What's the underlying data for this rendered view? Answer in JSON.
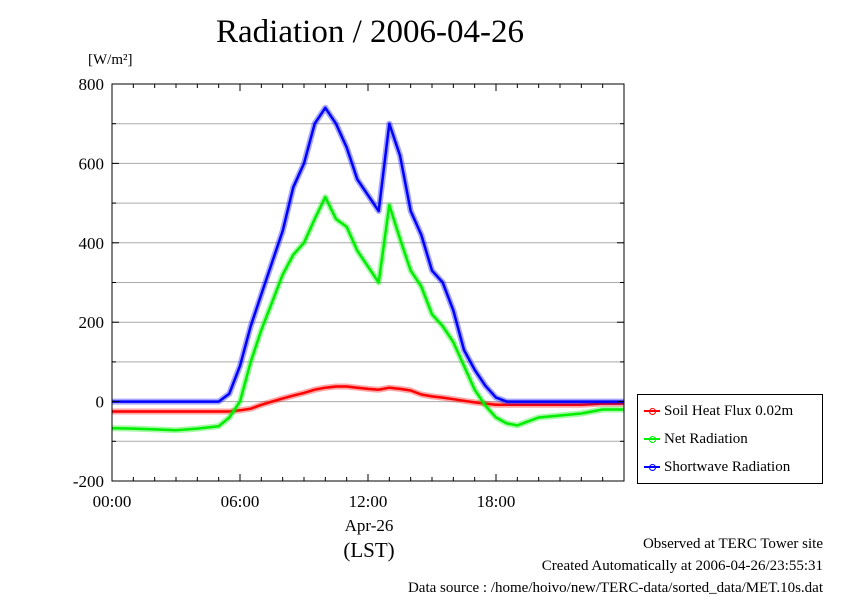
{
  "title": "Radiation / 2006-04-26",
  "unit_label": "[W/m²]",
  "x_sublabel": "Apr-26",
  "x_unit": "(LST)",
  "footer": {
    "line1": "Observed at TERC Tower site",
    "line2": "Created Automatically at 2006-04-26/23:55:31",
    "line3": "Data source : /home/hoivo/new/TERC-data/sorted_data/MET.10s.dat"
  },
  "colors": {
    "soil": "#ff0000",
    "net": "#00ee00",
    "shortwave": "#0000ff",
    "grid": "#aaaaaa"
  },
  "chart_data": {
    "type": "line",
    "title": "Radiation / 2006-04-26",
    "xlabel": "(LST)",
    "ylabel": "[W/m²]",
    "xlim": [
      0,
      24
    ],
    "ylim": [
      -200,
      800
    ],
    "x_ticks": [
      {
        "hour": 0,
        "label": "00:00"
      },
      {
        "hour": 6,
        "label": "06:00"
      },
      {
        "hour": 12,
        "label": "12:00"
      },
      {
        "hour": 18,
        "label": "18:00"
      }
    ],
    "y_ticks": [
      -200,
      0,
      200,
      400,
      600,
      800
    ],
    "grid": true,
    "legend_position": "right",
    "series": [
      {
        "name": "Soil Heat Flux 0.02m",
        "color_key": "soil",
        "x": [
          0,
          1,
          2,
          3,
          4,
          5,
          5.5,
          6,
          6.5,
          7,
          7.5,
          8,
          8.5,
          9,
          9.5,
          10,
          10.5,
          11,
          11.5,
          12,
          12.5,
          13,
          13.5,
          14,
          14.5,
          15,
          15.5,
          16,
          16.5,
          17,
          17.5,
          18,
          19,
          20,
          21,
          22,
          23,
          24
        ],
        "y": [
          -25,
          -25,
          -25,
          -25,
          -25,
          -25,
          -25,
          -22,
          -18,
          -8,
          0,
          8,
          15,
          22,
          30,
          35,
          38,
          38,
          35,
          32,
          30,
          35,
          32,
          28,
          18,
          13,
          10,
          6,
          2,
          -2,
          -5,
          -8,
          -8,
          -8,
          -8,
          -8,
          -5,
          -5
        ]
      },
      {
        "name": "Net Radiation",
        "color_key": "net",
        "x": [
          0,
          1,
          2,
          3,
          4,
          5,
          5.5,
          6,
          6.5,
          7,
          7.5,
          8,
          8.5,
          9,
          9.5,
          10,
          10.5,
          11,
          11.5,
          12,
          12.5,
          13,
          13.5,
          14,
          14.5,
          15,
          15.5,
          16,
          16.5,
          17,
          17.5,
          18,
          18.5,
          19,
          19.5,
          20,
          21,
          22,
          23,
          24
        ],
        "y": [
          -67,
          -68,
          -70,
          -72,
          -68,
          -62,
          -40,
          0,
          100,
          180,
          250,
          320,
          370,
          400,
          460,
          515,
          460,
          440,
          380,
          340,
          300,
          495,
          410,
          330,
          290,
          220,
          190,
          150,
          90,
          30,
          -10,
          -40,
          -55,
          -60,
          -50,
          -40,
          -35,
          -30,
          -20,
          -20
        ]
      },
      {
        "name": "Shortwave Radiation",
        "color_key": "shortwave",
        "x": [
          0,
          1,
          2,
          3,
          4,
          5,
          5.5,
          6,
          6.5,
          7,
          7.5,
          8,
          8.5,
          9,
          9.5,
          10,
          10.5,
          11,
          11.5,
          12,
          12.5,
          13,
          13.5,
          14,
          14.5,
          15,
          15.5,
          16,
          16.5,
          17,
          17.5,
          18,
          18.5,
          19,
          20,
          21,
          22,
          23,
          24
        ],
        "y": [
          0,
          0,
          0,
          0,
          0,
          0,
          20,
          90,
          190,
          270,
          350,
          430,
          540,
          600,
          700,
          740,
          700,
          640,
          560,
          520,
          480,
          700,
          620,
          480,
          420,
          330,
          300,
          230,
          130,
          80,
          40,
          10,
          0,
          0,
          0,
          0,
          0,
          0,
          0
        ]
      }
    ]
  }
}
